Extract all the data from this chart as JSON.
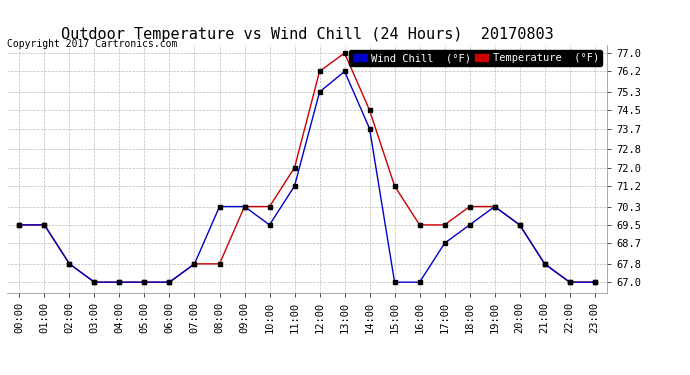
{
  "title": "Outdoor Temperature vs Wind Chill (24 Hours)  20170803",
  "copyright": "Copyright 2017 Cartronics.com",
  "legend_wind": "Wind Chill  (°F)",
  "legend_temp": "Temperature  (°F)",
  "x_labels": [
    "00:00",
    "01:00",
    "02:00",
    "03:00",
    "04:00",
    "05:00",
    "06:00",
    "07:00",
    "08:00",
    "09:00",
    "10:00",
    "11:00",
    "12:00",
    "13:00",
    "14:00",
    "15:00",
    "16:00",
    "17:00",
    "18:00",
    "19:00",
    "20:00",
    "21:00",
    "22:00",
    "23:00"
  ],
  "temperature": [
    69.5,
    69.5,
    67.8,
    67.0,
    67.0,
    67.0,
    67.0,
    67.8,
    67.8,
    70.3,
    70.3,
    72.0,
    76.2,
    77.0,
    74.5,
    71.2,
    69.5,
    69.5,
    70.3,
    70.3,
    69.5,
    67.8,
    67.0,
    67.0
  ],
  "wind_chill": [
    69.5,
    69.5,
    67.8,
    67.0,
    67.0,
    67.0,
    67.0,
    67.8,
    70.3,
    70.3,
    69.5,
    71.2,
    75.3,
    76.2,
    73.7,
    67.0,
    67.0,
    68.7,
    69.5,
    70.3,
    69.5,
    67.8,
    67.0,
    67.0
  ],
  "ylim_min": 66.55,
  "ylim_max": 77.35,
  "yticks": [
    67.0,
    67.8,
    68.7,
    69.5,
    70.3,
    71.2,
    72.0,
    72.8,
    73.7,
    74.5,
    75.3,
    76.2,
    77.0
  ],
  "temp_color": "#cc0000",
  "wind_color": "#0000cc",
  "marker_color": "#000000",
  "background_color": "#ffffff",
  "grid_color": "#bbbbbb",
  "title_fontsize": 11,
  "axis_fontsize": 7.5,
  "copyright_fontsize": 7,
  "legend_fontsize": 7.5
}
